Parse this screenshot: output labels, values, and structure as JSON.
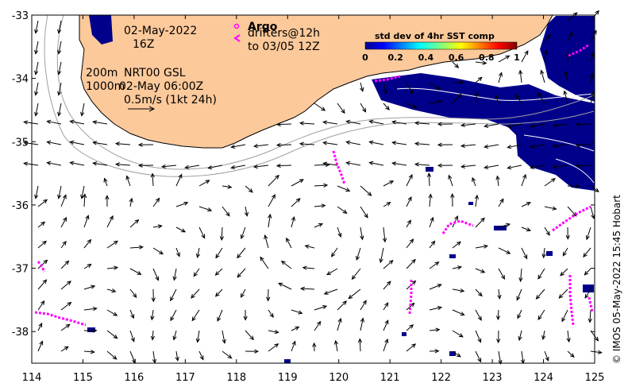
{
  "map": {
    "x_ticks": [
      "114",
      "115",
      "116",
      "117",
      "118",
      "119",
      "120",
      "121",
      "122",
      "123",
      "124",
      "125"
    ],
    "y_ticks": [
      "-33",
      "-34",
      "-35",
      "-36",
      "-37",
      "-38"
    ],
    "lon_range": [
      114,
      125
    ],
    "lat_range": [
      -38.5,
      -33
    ]
  },
  "annotations": {
    "date": "02-May-2022",
    "time": "16Z",
    "depth_200": "200m",
    "product": "NRT00 GSL",
    "depth_1000": "1000m",
    "analysis_time": "02-May 06:00Z",
    "scale_label": "0.5m/s (1kt 24h)"
  },
  "legend": {
    "argo_label": "Argo",
    "drifters_label": "drifters@12h",
    "drifters_until": "to 03/05 12Z",
    "argo_color": "#ff00ff"
  },
  "colorbar": {
    "title": "std dev of 4hr SST comp",
    "ticks": [
      "0",
      "0.2",
      "0.4",
      "0.6",
      "0.8",
      "1"
    ]
  },
  "copyright": "© IMOS 05-May-2022 15:45 Hobart",
  "colors": {
    "land": "#fcc99b",
    "sst": "#00008b",
    "drifter": "#ff00ff",
    "arrow": "#000000",
    "isobath": "#a0a0a0"
  }
}
